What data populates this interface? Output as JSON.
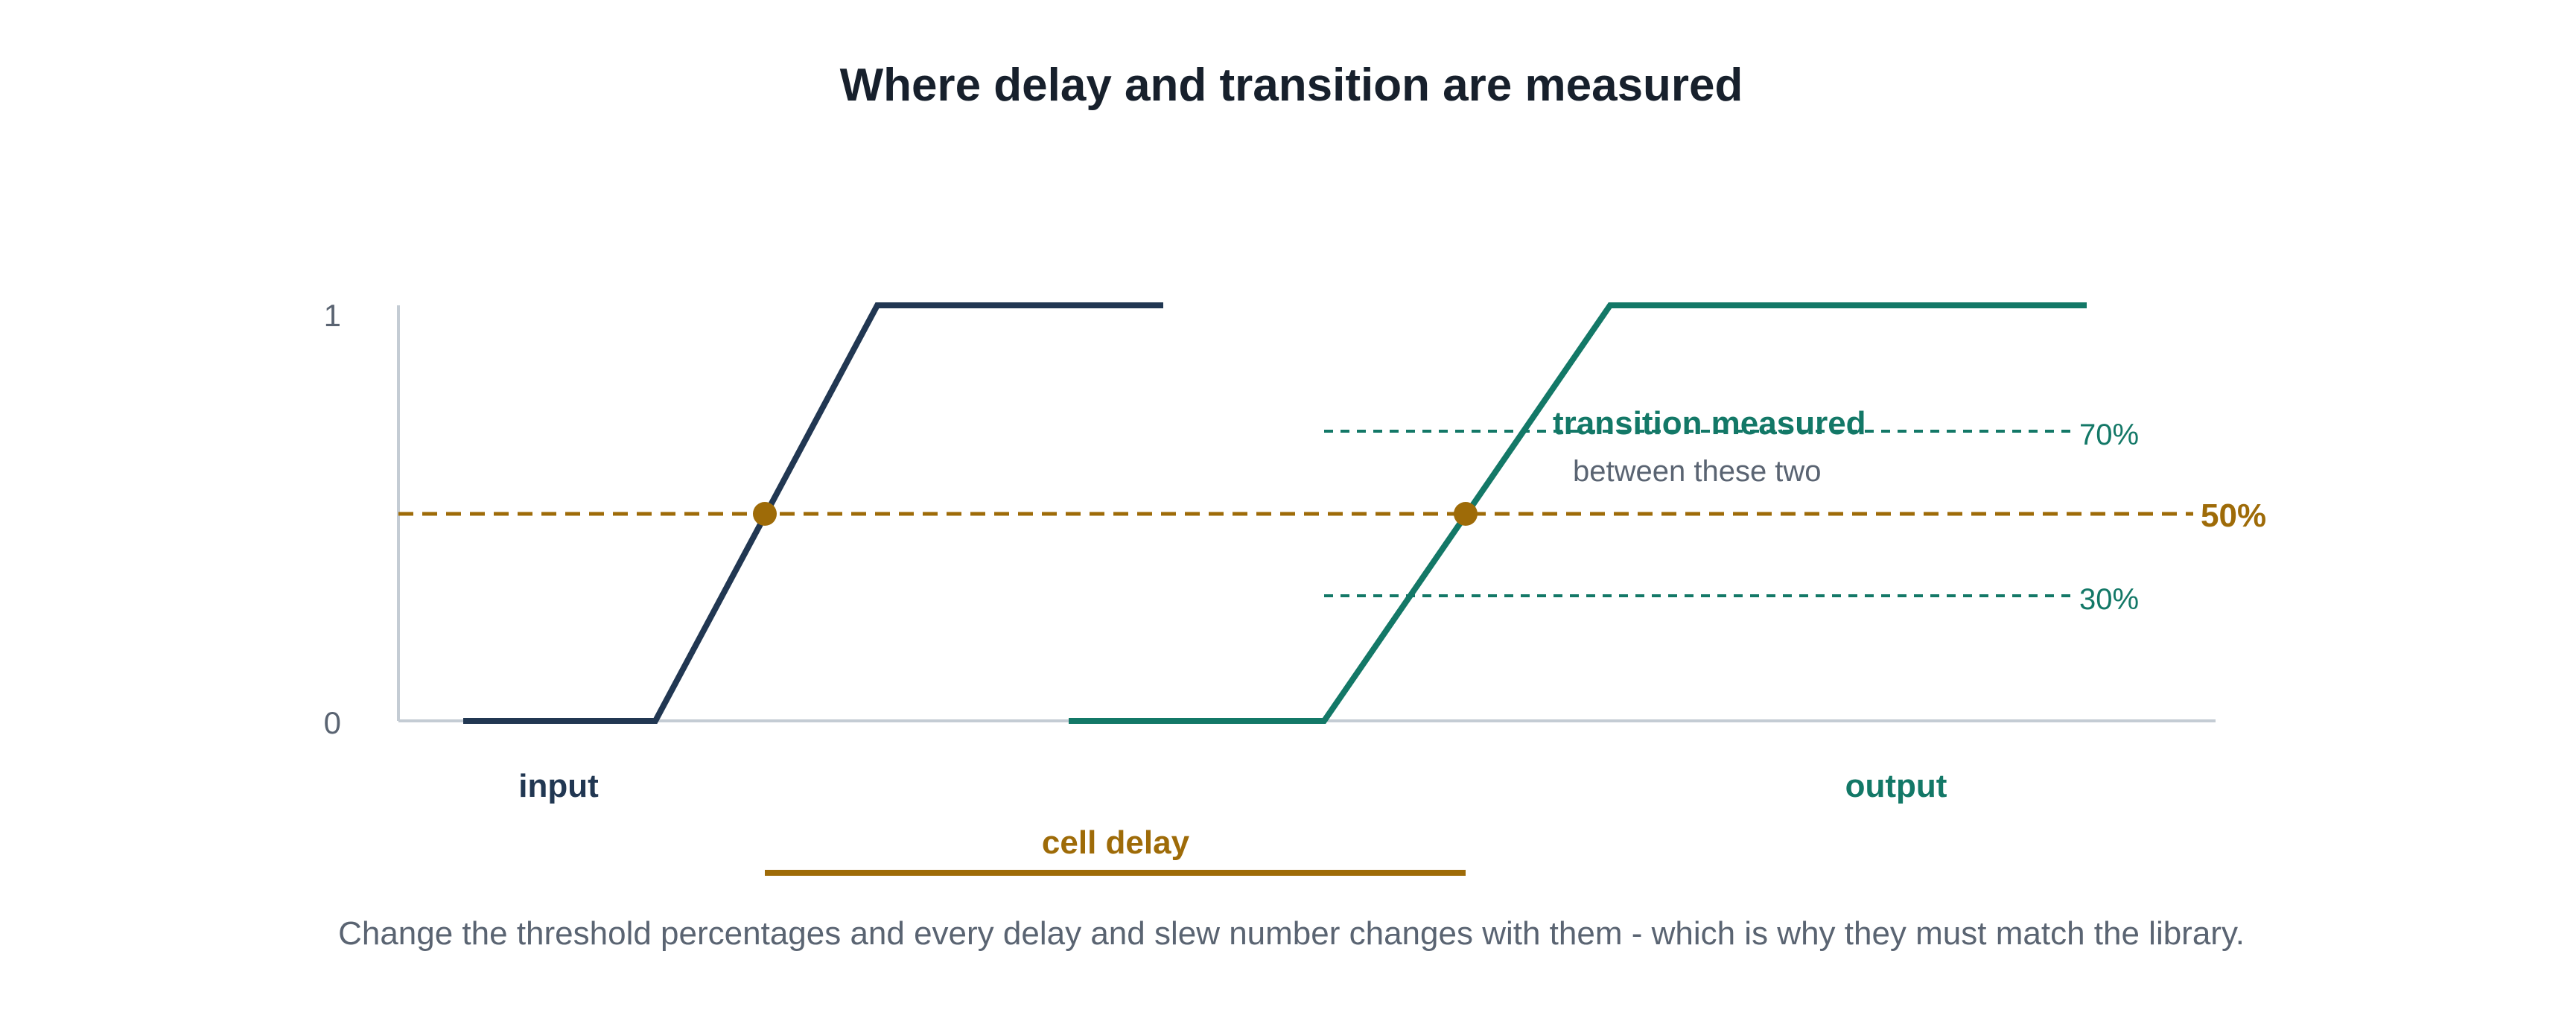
{
  "title": "Where delay and transition are measured",
  "axis": {
    "y_ticks": [
      "0",
      "1"
    ]
  },
  "threshold_mid": "50%",
  "threshold_high": "70%",
  "threshold_low": "30%",
  "signals": {
    "input": "input",
    "output": "output"
  },
  "transition_label_line1": "transition measured",
  "transition_label_line2": "between these two",
  "delay_label": "cell delay",
  "caption": "Change the threshold percentages and every delay and slew number changes with them - which is why they must match the library.",
  "colors": {
    "input": "#213752",
    "output": "#137867",
    "delay": "#9e6b08",
    "axis": "#c4ccd4",
    "muted": "#5a6472"
  }
}
